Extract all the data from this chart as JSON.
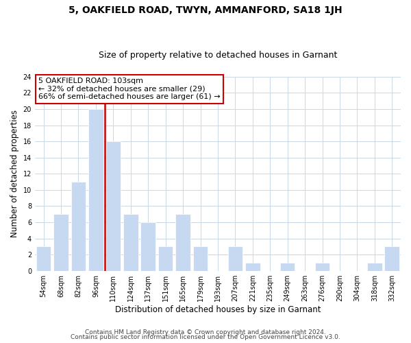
{
  "title": "5, OAKFIELD ROAD, TWYN, AMMANFORD, SA18 1JH",
  "subtitle": "Size of property relative to detached houses in Garnant",
  "xlabel": "Distribution of detached houses by size in Garnant",
  "ylabel": "Number of detached properties",
  "bar_labels": [
    "54sqm",
    "68sqm",
    "82sqm",
    "96sqm",
    "110sqm",
    "124sqm",
    "137sqm",
    "151sqm",
    "165sqm",
    "179sqm",
    "193sqm",
    "207sqm",
    "221sqm",
    "235sqm",
    "249sqm",
    "263sqm",
    "276sqm",
    "290sqm",
    "304sqm",
    "318sqm",
    "332sqm"
  ],
  "bar_values": [
    3,
    7,
    11,
    20,
    16,
    7,
    6,
    3,
    7,
    3,
    0,
    3,
    1,
    0,
    1,
    0,
    1,
    0,
    0,
    1,
    3
  ],
  "highlight_line_after_index": 3,
  "highlight_color": "#cc0000",
  "bar_color": "#c6d9f0",
  "bar_edge_color": "#ffffff",
  "ylim": [
    0,
    24
  ],
  "yticks": [
    0,
    2,
    4,
    6,
    8,
    10,
    12,
    14,
    16,
    18,
    20,
    22,
    24
  ],
  "annotation_line1": "5 OAKFIELD ROAD: 103sqm",
  "annotation_line2": "← 32% of detached houses are smaller (29)",
  "annotation_line3": "66% of semi-detached houses are larger (61) →",
  "footer_line1": "Contains HM Land Registry data © Crown copyright and database right 2024.",
  "footer_line2": "Contains public sector information licensed under the Open Government Licence v3.0.",
  "background_color": "#ffffff",
  "grid_color": "#c8d8e8",
  "title_fontsize": 10,
  "subtitle_fontsize": 9,
  "axis_label_fontsize": 8.5,
  "tick_fontsize": 7,
  "annotation_fontsize": 8,
  "footer_fontsize": 6.5
}
